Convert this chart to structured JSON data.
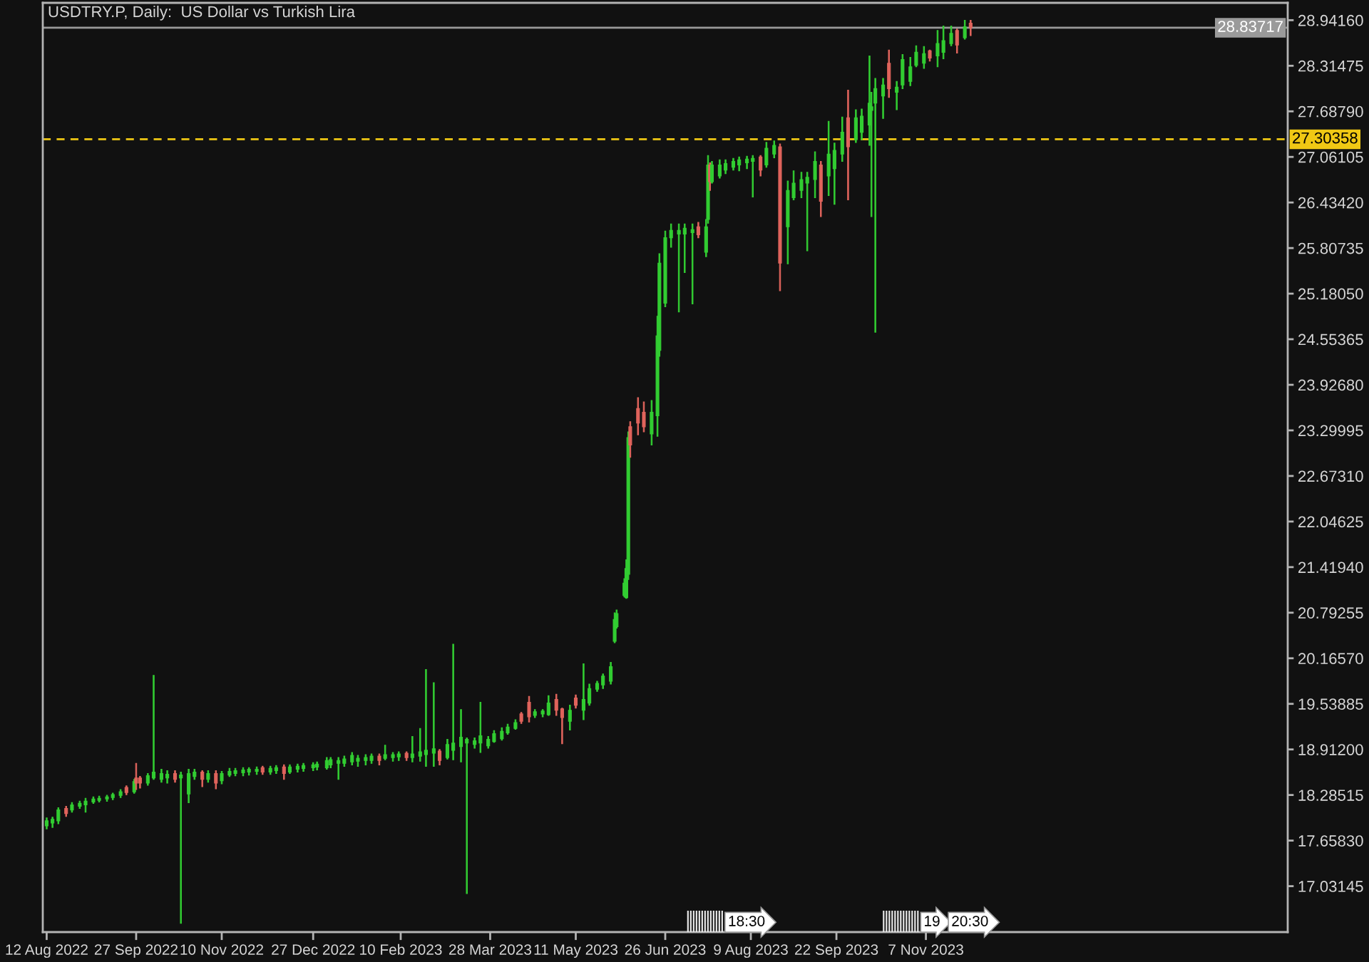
{
  "chart_data": {
    "type": "candlestick",
    "title": "USDTRY.P, Daily:  US Dollar vs Turkish Lira",
    "x": [
      "2022-08-12",
      "2022-08-15",
      "2022-08-18",
      "2022-08-22",
      "2022-08-25",
      "2022-08-29",
      "2022-09-01",
      "2022-09-05",
      "2022-09-08",
      "2022-09-12",
      "2022-09-15",
      "2022-09-19",
      "2022-09-22",
      "2022-09-26",
      "2022-09-27",
      "2022-09-29",
      "2022-10-03",
      "2022-10-06",
      "2022-10-10",
      "2022-10-13",
      "2022-10-17",
      "2022-10-20",
      "2022-10-24",
      "2022-10-27",
      "2022-10-31",
      "2022-11-03",
      "2022-11-07",
      "2022-11-10",
      "2022-11-14",
      "2022-11-17",
      "2022-11-21",
      "2022-11-24",
      "2022-11-28",
      "2022-12-01",
      "2022-12-05",
      "2022-12-08",
      "2022-12-12",
      "2022-12-15",
      "2022-12-19",
      "2022-12-22",
      "2022-12-27",
      "2022-12-29",
      "2023-01-03",
      "2023-01-05",
      "2023-01-09",
      "2023-01-12",
      "2023-01-16",
      "2023-01-19",
      "2023-01-23",
      "2023-01-26",
      "2023-01-30",
      "2023-02-02",
      "2023-02-06",
      "2023-02-09",
      "2023-02-13",
      "2023-02-16",
      "2023-02-20",
      "2023-02-23",
      "2023-02-27",
      "2023-03-02",
      "2023-03-06",
      "2023-03-09",
      "2023-03-13",
      "2023-03-16",
      "2023-03-20",
      "2023-03-23",
      "2023-03-27",
      "2023-03-30",
      "2023-04-03",
      "2023-04-06",
      "2023-04-10",
      "2023-04-13",
      "2023-04-17",
      "2023-04-20",
      "2023-04-24",
      "2023-04-27",
      "2023-05-01",
      "2023-05-04",
      "2023-05-08",
      "2023-05-11",
      "2023-05-15",
      "2023-05-18",
      "2023-05-22",
      "2023-05-25",
      "2023-05-29",
      "2023-05-31",
      "2023-06-01",
      "2023-06-05",
      "2023-06-06",
      "2023-06-07",
      "2023-06-08",
      "2023-06-12",
      "2023-06-15",
      "2023-06-19",
      "2023-06-22",
      "2023-06-23",
      "2023-06-26",
      "2023-06-29",
      "2023-07-03",
      "2023-07-06",
      "2023-07-10",
      "2023-07-13",
      "2023-07-17",
      "2023-07-18",
      "2023-07-19",
      "2023-07-20",
      "2023-07-24",
      "2023-07-27",
      "2023-07-31",
      "2023-08-03",
      "2023-08-07",
      "2023-08-10",
      "2023-08-14",
      "2023-08-17",
      "2023-08-21",
      "2023-08-24",
      "2023-08-28",
      "2023-08-31",
      "2023-09-04",
      "2023-09-07",
      "2023-09-11",
      "2023-09-14",
      "2023-09-18",
      "2023-09-21",
      "2023-09-25",
      "2023-09-28",
      "2023-10-02",
      "2023-10-05",
      "2023-10-09",
      "2023-10-10",
      "2023-10-12",
      "2023-10-16",
      "2023-10-19",
      "2023-10-23",
      "2023-10-26",
      "2023-10-30",
      "2023-11-02",
      "2023-11-06",
      "2023-11-09",
      "2023-11-13",
      "2023-11-16",
      "2023-11-20",
      "2023-11-23",
      "2023-11-27",
      "2023-11-30"
    ],
    "ohlc": [
      [
        17.86,
        17.97,
        17.82,
        17.93
      ],
      [
        17.9,
        17.98,
        17.84,
        17.95
      ],
      [
        17.93,
        18.11,
        17.89,
        18.08
      ],
      [
        18.1,
        18.13,
        17.99,
        18.03
      ],
      [
        18.08,
        18.18,
        18.05,
        18.15
      ],
      [
        18.13,
        18.2,
        18.1,
        18.17
      ],
      [
        18.15,
        18.24,
        18.05,
        18.2
      ],
      [
        18.19,
        18.26,
        18.17,
        18.23
      ],
      [
        18.21,
        18.27,
        18.19,
        18.24
      ],
      [
        18.23,
        18.28,
        18.2,
        18.26
      ],
      [
        18.25,
        18.31,
        18.22,
        18.29
      ],
      [
        18.28,
        18.36,
        18.25,
        18.33
      ],
      [
        18.39,
        18.41,
        18.29,
        18.32
      ],
      [
        18.33,
        18.5,
        18.31,
        18.47
      ],
      [
        18.52,
        18.72,
        18.36,
        18.45
      ],
      [
        18.52,
        18.54,
        18.38,
        18.45
      ],
      [
        18.45,
        18.58,
        18.42,
        18.55
      ],
      [
        18.52,
        19.93,
        18.5,
        18.6
      ],
      [
        18.5,
        18.64,
        18.46,
        18.58
      ],
      [
        18.52,
        18.62,
        18.45,
        18.57
      ],
      [
        18.58,
        18.62,
        18.46,
        18.5
      ],
      [
        18.52,
        18.6,
        16.52,
        18.56
      ],
      [
        18.3,
        18.64,
        18.18,
        18.58
      ],
      [
        18.54,
        18.64,
        18.5,
        18.6
      ],
      [
        18.6,
        18.62,
        18.4,
        18.5
      ],
      [
        18.5,
        18.62,
        18.46,
        18.58
      ],
      [
        18.58,
        18.62,
        18.37,
        18.45
      ],
      [
        18.48,
        18.61,
        18.44,
        18.58
      ],
      [
        18.56,
        18.65,
        18.54,
        18.61
      ],
      [
        18.58,
        18.65,
        18.55,
        18.62
      ],
      [
        18.59,
        18.66,
        18.55,
        18.63
      ],
      [
        18.6,
        18.66,
        18.56,
        18.64
      ],
      [
        18.61,
        18.67,
        18.57,
        18.64
      ],
      [
        18.66,
        18.68,
        18.57,
        18.6
      ],
      [
        18.6,
        18.68,
        18.57,
        18.65
      ],
      [
        18.62,
        18.69,
        18.58,
        18.66
      ],
      [
        18.67,
        18.7,
        18.5,
        18.58
      ],
      [
        18.6,
        18.7,
        18.58,
        18.67
      ],
      [
        18.64,
        18.71,
        18.6,
        18.68
      ],
      [
        18.65,
        18.72,
        18.61,
        18.69
      ],
      [
        18.66,
        18.73,
        18.62,
        18.7
      ],
      [
        18.67,
        18.74,
        18.63,
        18.71
      ],
      [
        18.66,
        18.8,
        18.64,
        18.76
      ],
      [
        18.7,
        18.8,
        18.66,
        18.77
      ],
      [
        18.72,
        18.8,
        18.5,
        18.76
      ],
      [
        18.72,
        18.82,
        18.68,
        18.78
      ],
      [
        18.74,
        18.87,
        18.7,
        18.83
      ],
      [
        18.75,
        18.83,
        18.68,
        18.79
      ],
      [
        18.76,
        18.84,
        18.7,
        18.8
      ],
      [
        18.76,
        18.85,
        18.72,
        18.82
      ],
      [
        18.82,
        18.85,
        18.7,
        18.76
      ],
      [
        18.79,
        18.97,
        18.77,
        18.84
      ],
      [
        18.8,
        18.87,
        18.75,
        18.84
      ],
      [
        18.81,
        18.88,
        18.76,
        18.85
      ],
      [
        18.86,
        18.88,
        18.76,
        18.8
      ],
      [
        18.8,
        19.09,
        18.74,
        18.85
      ],
      [
        18.82,
        19.2,
        18.75,
        18.88
      ],
      [
        18.84,
        20.01,
        18.68,
        18.9
      ],
      [
        18.86,
        19.83,
        18.68,
        18.92
      ],
      [
        18.89,
        18.91,
        18.7,
        18.76
      ],
      [
        18.8,
        19.05,
        18.78,
        18.98
      ],
      [
        18.9,
        20.36,
        18.77,
        19.0
      ],
      [
        18.95,
        19.46,
        18.74,
        19.08
      ],
      [
        19.0,
        19.07,
        16.93,
        19.05
      ],
      [
        18.98,
        19.07,
        18.93,
        19.03
      ],
      [
        19.0,
        19.56,
        18.87,
        19.1
      ],
      [
        18.96,
        19.09,
        18.93,
        19.05
      ],
      [
        19.02,
        19.17,
        19.01,
        19.13
      ],
      [
        19.06,
        19.21,
        19.04,
        19.16
      ],
      [
        19.14,
        19.26,
        19.12,
        19.22
      ],
      [
        19.2,
        19.32,
        19.19,
        19.28
      ],
      [
        19.4,
        19.42,
        19.27,
        19.3
      ],
      [
        19.56,
        19.64,
        19.29,
        19.36
      ],
      [
        19.38,
        19.46,
        19.35,
        19.43
      ],
      [
        19.4,
        19.46,
        19.36,
        19.44
      ],
      [
        19.39,
        19.65,
        19.38,
        19.55
      ],
      [
        19.6,
        19.67,
        19.38,
        19.45
      ],
      [
        19.47,
        19.48,
        18.99,
        19.35
      ],
      [
        19.3,
        19.52,
        19.18,
        19.45
      ],
      [
        19.62,
        19.66,
        19.48,
        19.52
      ],
      [
        19.45,
        20.09,
        19.32,
        19.6
      ],
      [
        19.55,
        19.81,
        19.52,
        19.75
      ],
      [
        19.74,
        19.85,
        19.71,
        19.82
      ],
      [
        19.8,
        19.95,
        19.75,
        19.92
      ],
      [
        19.85,
        20.11,
        19.81,
        20.05
      ],
      [
        20.4,
        20.79,
        20.38,
        20.7
      ],
      [
        20.6,
        20.83,
        20.58,
        20.78
      ],
      [
        21.03,
        21.26,
        21.01,
        21.2
      ],
      [
        21.0,
        21.52,
        20.99,
        21.4
      ],
      [
        21.32,
        23.28,
        21.25,
        23.2
      ],
      [
        23.35,
        23.42,
        22.93,
        23.1
      ],
      [
        23.6,
        23.75,
        23.24,
        23.4
      ],
      [
        23.55,
        23.69,
        23.28,
        23.35
      ],
      [
        23.25,
        23.71,
        23.1,
        23.55
      ],
      [
        23.5,
        24.87,
        23.22,
        24.6
      ],
      [
        24.4,
        25.73,
        24.32,
        25.6
      ],
      [
        25.05,
        26.04,
        25.0,
        25.95
      ],
      [
        25.95,
        26.14,
        25.82,
        26.05
      ],
      [
        26.0,
        26.14,
        24.93,
        26.05
      ],
      [
        26.0,
        26.14,
        25.47,
        26.08
      ],
      [
        26.02,
        26.14,
        25.04,
        26.06
      ],
      [
        26.1,
        26.16,
        25.95,
        25.99
      ],
      [
        25.75,
        26.2,
        25.69,
        26.1
      ],
      [
        26.2,
        27.08,
        26.15,
        26.95
      ],
      [
        26.95,
        26.98,
        26.6,
        26.72
      ],
      [
        26.72,
        27.0,
        26.7,
        26.95
      ],
      [
        26.8,
        27.02,
        26.77,
        26.95
      ],
      [
        26.88,
        27.02,
        26.83,
        26.97
      ],
      [
        26.92,
        27.04,
        26.88,
        27.0
      ],
      [
        26.95,
        27.06,
        26.87,
        27.02
      ],
      [
        26.98,
        27.07,
        26.9,
        27.03
      ],
      [
        27.0,
        27.08,
        26.51,
        27.04
      ],
      [
        27.06,
        27.08,
        26.8,
        26.88
      ],
      [
        26.95,
        27.26,
        26.92,
        27.18
      ],
      [
        27.1,
        27.28,
        27.05,
        27.22
      ],
      [
        27.2,
        27.24,
        25.22,
        25.6
      ],
      [
        26.1,
        26.73,
        25.59,
        26.6
      ],
      [
        26.5,
        26.87,
        26.47,
        26.7
      ],
      [
        26.6,
        26.85,
        26.5,
        26.75
      ],
      [
        26.7,
        26.85,
        25.77,
        26.78
      ],
      [
        26.75,
        27.13,
        26.5,
        27.0
      ],
      [
        26.95,
        27.0,
        26.24,
        26.45
      ],
      [
        26.8,
        27.55,
        26.53,
        27.1
      ],
      [
        26.9,
        27.25,
        26.41,
        27.15
      ],
      [
        27.1,
        27.61,
        27.0,
        27.4
      ],
      [
        27.6,
        27.98,
        26.47,
        27.2
      ],
      [
        27.3,
        27.71,
        27.26,
        27.6
      ],
      [
        27.4,
        27.72,
        27.3,
        27.62
      ],
      [
        27.5,
        28.45,
        27.22,
        27.8
      ],
      [
        27.7,
        27.95,
        26.24,
        27.75
      ],
      [
        27.8,
        28.14,
        24.65,
        28.0
      ],
      [
        27.9,
        28.14,
        27.59,
        28.05
      ],
      [
        28.35,
        28.53,
        27.88,
        28.0
      ],
      [
        27.95,
        28.1,
        27.71,
        28.02
      ],
      [
        28.05,
        28.47,
        28.0,
        28.4
      ],
      [
        28.1,
        28.43,
        28.04,
        28.3
      ],
      [
        28.32,
        28.59,
        28.3,
        28.5
      ],
      [
        28.35,
        28.58,
        28.28,
        28.48
      ],
      [
        28.52,
        28.53,
        28.38,
        28.42
      ],
      [
        28.45,
        28.8,
        28.3,
        28.62
      ],
      [
        28.5,
        28.86,
        28.41,
        28.66
      ],
      [
        28.62,
        28.86,
        28.59,
        28.76
      ],
      [
        28.8,
        28.82,
        28.49,
        28.6
      ],
      [
        28.7,
        28.94,
        28.68,
        28.85
      ],
      [
        28.9,
        28.94,
        28.73,
        28.84
      ]
    ],
    "colors": [
      "#32cd32",
      "#32cd32",
      "#32cd32",
      "#e0645c",
      "#32cd32",
      "#32cd32",
      "#32cd32",
      "#32cd32",
      "#32cd32",
      "#32cd32",
      "#32cd32",
      "#32cd32",
      "#e0645c",
      "#32cd32",
      "#e0645c",
      "#e0645c",
      "#32cd32",
      "#32cd32",
      "#32cd32",
      "#32cd32",
      "#e0645c",
      "#32cd32",
      "#32cd32",
      "#32cd32",
      "#e0645c",
      "#32cd32",
      "#e0645c",
      "#32cd32",
      "#32cd32",
      "#32cd32",
      "#32cd32",
      "#32cd32",
      "#32cd32",
      "#e0645c",
      "#32cd32",
      "#32cd32",
      "#e0645c",
      "#32cd32",
      "#32cd32",
      "#32cd32",
      "#32cd32",
      "#32cd32",
      "#32cd32",
      "#32cd32",
      "#32cd32",
      "#32cd32",
      "#32cd32",
      "#32cd32",
      "#32cd32",
      "#32cd32",
      "#e0645c",
      "#32cd32",
      "#32cd32",
      "#32cd32",
      "#e0645c",
      "#32cd32",
      "#32cd32",
      "#32cd32",
      "#32cd32",
      "#e0645c",
      "#32cd32",
      "#32cd32",
      "#32cd32",
      "#32cd32",
      "#32cd32",
      "#32cd32",
      "#32cd32",
      "#32cd32",
      "#32cd32",
      "#32cd32",
      "#32cd32",
      "#e0645c",
      "#e0645c",
      "#32cd32",
      "#32cd32",
      "#32cd32",
      "#e0645c",
      "#e0645c",
      "#32cd32",
      "#e0645c",
      "#32cd32",
      "#32cd32",
      "#32cd32",
      "#32cd32",
      "#32cd32",
      "#32cd32",
      "#32cd32",
      "#32cd32",
      "#32cd32",
      "#32cd32",
      "#e0645c",
      "#e0645c",
      "#e0645c",
      "#32cd32",
      "#32cd32",
      "#32cd32",
      "#32cd32",
      "#32cd32",
      "#32cd32",
      "#32cd32",
      "#32cd32",
      "#e0645c",
      "#32cd32",
      "#32cd32",
      "#e0645c",
      "#32cd32",
      "#32cd32",
      "#32cd32",
      "#32cd32",
      "#32cd32",
      "#32cd32",
      "#32cd32",
      "#e0645c",
      "#32cd32",
      "#32cd32",
      "#e0645c",
      "#32cd32",
      "#32cd32",
      "#32cd32",
      "#32cd32",
      "#32cd32",
      "#e0645c",
      "#32cd32",
      "#32cd32",
      "#32cd32",
      "#e0645c",
      "#32cd32",
      "#32cd32",
      "#32cd32",
      "#32cd32",
      "#32cd32",
      "#32cd32",
      "#e0645c",
      "#32cd32",
      "#32cd32",
      "#32cd32",
      "#32cd32",
      "#32cd32",
      "#e0645c",
      "#32cd32",
      "#32cd32",
      "#32cd32",
      "#e0645c",
      "#32cd32",
      "#e0645c"
    ],
    "xlim": [
      "2022-08-10",
      "2024-05-11"
    ],
    "xticks": [
      {
        "value": "2022-08-12",
        "label": "12 Aug 2022"
      },
      {
        "value": "2022-09-27",
        "label": "27 Sep 2022"
      },
      {
        "value": "2022-11-10",
        "label": "10 Nov 2022"
      },
      {
        "value": "2022-12-27",
        "label": "27 Dec 2022"
      },
      {
        "value": "2023-02-10",
        "label": "10 Feb 2023"
      },
      {
        "value": "2023-03-28",
        "label": "28 Mar 2023"
      },
      {
        "value": "2023-05-11",
        "label": "11 May 2023"
      },
      {
        "value": "2023-06-26",
        "label": "26 Jun 2023"
      },
      {
        "value": "2023-08-09",
        "label": "9 Aug 2023"
      },
      {
        "value": "2023-09-22",
        "label": "22 Sep 2023"
      },
      {
        "value": "2023-11-07",
        "label": "7 Nov 2023"
      }
    ],
    "ylim": [
      16.4,
      29.18
    ],
    "yticks": [
      {
        "value": 28.9416,
        "label": "28.94160"
      },
      28.31475,
      {
        "value": 27.6879,
        "label": "27.68790"
      },
      27.06105,
      {
        "value": 26.4342,
        "label": "26.43420"
      },
      25.80735,
      {
        "value": 25.1805,
        "label": "25.18050"
      },
      24.55365,
      {
        "value": 23.9268,
        "label": "23.92680"
      },
      23.29995,
      {
        "value": 22.6731,
        "label": "22.67310"
      },
      22.04625,
      {
        "value": 21.4194,
        "label": "21.41940"
      },
      20.79255,
      {
        "value": 20.1657,
        "label": "20.16570"
      },
      19.53885,
      {
        "value": 18.912,
        "label": "18.91200"
      },
      18.28515,
      {
        "value": 17.6583,
        "label": "17.65830"
      },
      17.03145
    ],
    "ref_lines": [
      {
        "axis": "y",
        "value": 28.83717,
        "label": "28.83717",
        "color": "#9a9a9a",
        "line_style": "solid"
      },
      {
        "axis": "y",
        "value": 27.30358,
        "label": "27.30358",
        "color": "#f0c814",
        "line_style": "dashed"
      }
    ],
    "annotations": [
      "18:30",
      "19",
      "20:30"
    ]
  }
}
